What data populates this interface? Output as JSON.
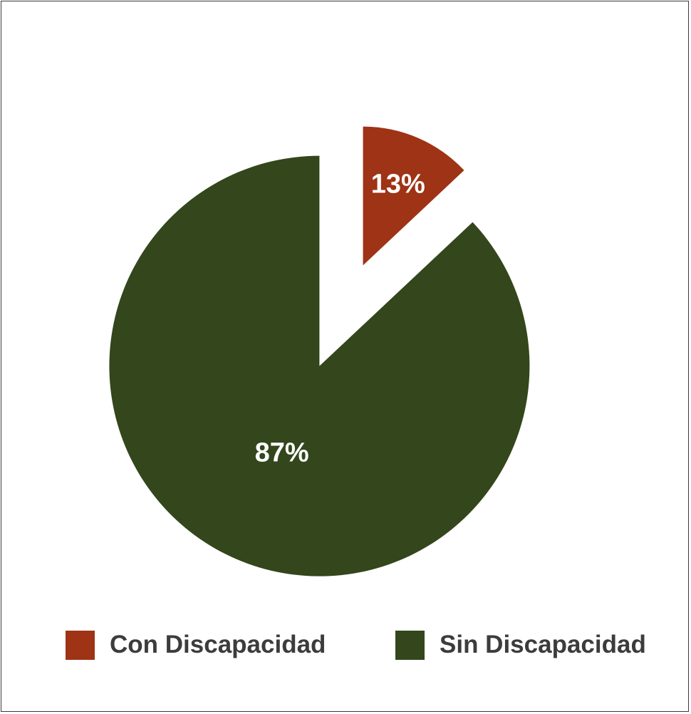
{
  "chart_data": {
    "type": "pie",
    "slices": [
      {
        "label": "Con Discapacidad",
        "value": 13,
        "display": "13%",
        "color": "#9e3315",
        "exploded": true
      },
      {
        "label": "Sin Discapacidad",
        "value": 87,
        "display": "87%",
        "color": "#33461c",
        "exploded": false
      }
    ],
    "legend_placement": "bottom"
  }
}
